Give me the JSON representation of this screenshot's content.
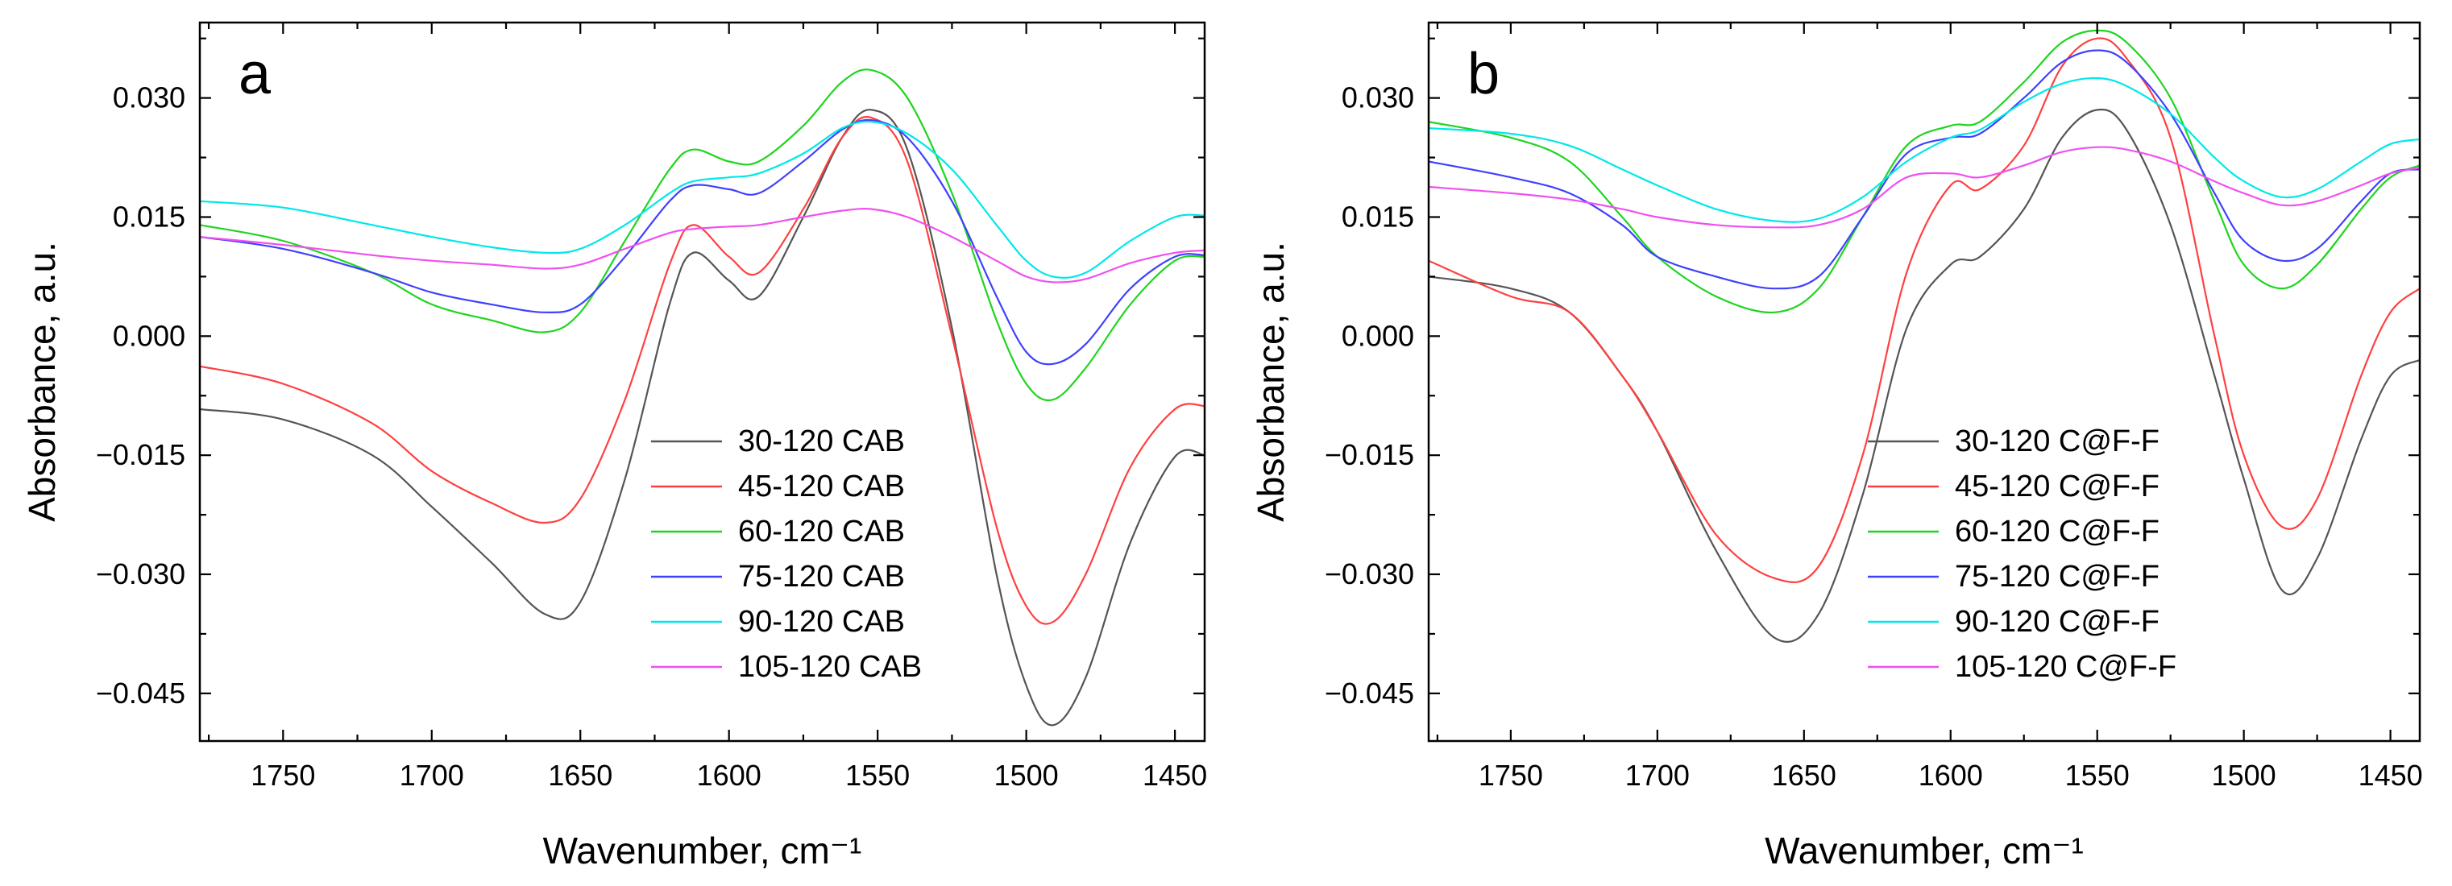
{
  "chart_data": [
    {
      "type": "line",
      "panel_label": "a",
      "xlabel": "Wavenumber, cm⁻¹",
      "ylabel": "Absorbance, a.u.",
      "xlim": [
        1778,
        1440
      ],
      "ylim": [
        -0.051,
        0.0395
      ],
      "x_ticks": [
        1750,
        1700,
        1650,
        1600,
        1550,
        1500,
        1450
      ],
      "x_tick_labels": [
        "1750",
        "1700",
        "1650",
        "1600",
        "1550",
        "1500",
        "1450"
      ],
      "y_ticks": [
        0.03,
        0.015,
        0.0,
        -0.015,
        -0.03,
        -0.045
      ],
      "y_tick_labels": [
        "0.030",
        "0.015",
        "0.000",
        "−0.015",
        "−0.030",
        "−0.045"
      ],
      "legend_position": "bottom-right",
      "x": [
        1778,
        1750,
        1720,
        1700,
        1680,
        1662,
        1650,
        1635,
        1620,
        1612,
        1600,
        1590,
        1575,
        1562,
        1552,
        1540,
        1525,
        1510,
        1500,
        1491,
        1480,
        1465,
        1450,
        1440
      ],
      "series": [
        {
          "name": "30-120 CAB",
          "color": "#555555",
          "values": [
            -0.0092,
            -0.0105,
            -0.015,
            -0.0215,
            -0.0285,
            -0.035,
            -0.0335,
            -0.018,
            0.004,
            0.0105,
            0.007,
            0.005,
            0.015,
            0.025,
            0.0285,
            0.0235,
            0.001,
            -0.03,
            -0.044,
            -0.049,
            -0.043,
            -0.026,
            -0.0152,
            -0.015
          ]
        },
        {
          "name": "45-120 CAB",
          "color": "#ff4040",
          "values": [
            -0.0038,
            -0.006,
            -0.011,
            -0.017,
            -0.021,
            -0.0235,
            -0.0205,
            -0.008,
            0.009,
            0.014,
            0.01,
            0.008,
            0.016,
            0.025,
            0.0275,
            0.022,
            0.0,
            -0.024,
            -0.034,
            -0.036,
            -0.03,
            -0.0165,
            -0.0092,
            -0.0088
          ]
        },
        {
          "name": "60-120 CAB",
          "color": "#1fd51f",
          "values": [
            0.014,
            0.012,
            0.008,
            0.004,
            0.002,
            0.0005,
            0.003,
            0.012,
            0.021,
            0.0235,
            0.022,
            0.022,
            0.0265,
            0.032,
            0.0335,
            0.03,
            0.018,
            0.002,
            -0.006,
            -0.008,
            -0.004,
            0.004,
            0.0095,
            0.01
          ]
        },
        {
          "name": "75-120 CAB",
          "color": "#4040ff",
          "values": [
            0.0125,
            0.011,
            0.008,
            0.0055,
            0.004,
            0.003,
            0.004,
            0.01,
            0.017,
            0.019,
            0.0185,
            0.018,
            0.022,
            0.026,
            0.0272,
            0.025,
            0.017,
            0.005,
            -0.002,
            -0.0035,
            -0.001,
            0.006,
            0.01,
            0.0102
          ]
        },
        {
          "name": "90-120 CAB",
          "color": "#00e8e8",
          "values": [
            0.017,
            0.0162,
            0.014,
            0.0125,
            0.0112,
            0.0105,
            0.011,
            0.014,
            0.018,
            0.0195,
            0.02,
            0.0205,
            0.023,
            0.0262,
            0.027,
            0.0255,
            0.021,
            0.014,
            0.0095,
            0.0075,
            0.008,
            0.012,
            0.015,
            0.0152
          ]
        },
        {
          "name": "105-120 CAB",
          "color": "#f050f0",
          "values": [
            0.0125,
            0.0115,
            0.0102,
            0.0095,
            0.009,
            0.0085,
            0.009,
            0.011,
            0.013,
            0.0135,
            0.0138,
            0.014,
            0.015,
            0.0158,
            0.016,
            0.015,
            0.0125,
            0.0095,
            0.0075,
            0.0068,
            0.0072,
            0.0092,
            0.0105,
            0.0108
          ]
        }
      ]
    },
    {
      "type": "line",
      "panel_label": "b",
      "xlabel": "Wavenumber, cm⁻¹",
      "ylabel": "Absorbance, a.u.",
      "xlim": [
        1778,
        1440
      ],
      "ylim": [
        -0.051,
        0.0395
      ],
      "x_ticks": [
        1750,
        1700,
        1650,
        1600,
        1550,
        1500,
        1450
      ],
      "x_tick_labels": [
        "1750",
        "1700",
        "1650",
        "1600",
        "1550",
        "1500",
        "1450"
      ],
      "y_ticks": [
        0.03,
        0.015,
        0.0,
        -0.015,
        -0.03,
        -0.045
      ],
      "y_tick_labels": [
        "0.030",
        "0.015",
        "0.000",
        "−0.015",
        "−0.030",
        "−0.045"
      ],
      "legend_position": "bottom-right",
      "x": [
        1778,
        1750,
        1730,
        1712,
        1700,
        1680,
        1660,
        1645,
        1630,
        1615,
        1600,
        1590,
        1575,
        1562,
        1550,
        1540,
        1525,
        1510,
        1500,
        1487,
        1475,
        1460,
        1450,
        1440
      ],
      "series": [
        {
          "name": "30-120 C@F-F",
          "color": "#555555",
          "values": [
            0.0075,
            0.006,
            0.003,
            -0.005,
            -0.012,
            -0.027,
            -0.038,
            -0.035,
            -0.02,
            0.001,
            0.009,
            0.01,
            0.016,
            0.025,
            0.0285,
            0.026,
            0.014,
            -0.005,
            -0.018,
            -0.032,
            -0.028,
            -0.013,
            -0.005,
            -0.003
          ]
        },
        {
          "name": "45-120 C@F-F",
          "color": "#ff4040",
          "values": [
            0.0095,
            0.005,
            0.003,
            -0.005,
            -0.012,
            -0.025,
            -0.0305,
            -0.029,
            -0.015,
            0.008,
            0.019,
            0.0185,
            0.024,
            0.034,
            0.0375,
            0.035,
            0.025,
            0.0,
            -0.015,
            -0.024,
            -0.0205,
            -0.005,
            0.003,
            0.006
          ]
        },
        {
          "name": "60-120 C@F-F",
          "color": "#1fd51f",
          "values": [
            0.027,
            0.025,
            0.022,
            0.015,
            0.01,
            0.005,
            0.003,
            0.006,
            0.015,
            0.024,
            0.0265,
            0.027,
            0.032,
            0.037,
            0.0385,
            0.037,
            0.03,
            0.017,
            0.009,
            0.006,
            0.009,
            0.016,
            0.02,
            0.0215
          ]
        },
        {
          "name": "75-120 C@F-F",
          "color": "#4040ff",
          "values": [
            0.022,
            0.02,
            0.018,
            0.014,
            0.01,
            0.0075,
            0.006,
            0.0075,
            0.015,
            0.023,
            0.025,
            0.0255,
            0.03,
            0.0345,
            0.036,
            0.0345,
            0.028,
            0.018,
            0.012,
            0.0095,
            0.011,
            0.017,
            0.0205,
            0.021
          ]
        },
        {
          "name": "90-120 C@F-F",
          "color": "#00e8e8",
          "values": [
            0.0262,
            0.0255,
            0.024,
            0.021,
            0.019,
            0.016,
            0.0145,
            0.0148,
            0.0175,
            0.022,
            0.025,
            0.026,
            0.0295,
            0.0318,
            0.0325,
            0.0315,
            0.028,
            0.0225,
            0.0195,
            0.0175,
            0.0185,
            0.022,
            0.0242,
            0.0248
          ]
        },
        {
          "name": "105-120 C@F-F",
          "color": "#f050f0",
          "values": [
            0.0188,
            0.018,
            0.0172,
            0.016,
            0.015,
            0.014,
            0.0137,
            0.014,
            0.016,
            0.02,
            0.0205,
            0.02,
            0.0215,
            0.0232,
            0.0238,
            0.0235,
            0.022,
            0.0195,
            0.018,
            0.0165,
            0.017,
            0.019,
            0.0205,
            0.0212
          ]
        }
      ]
    }
  ]
}
